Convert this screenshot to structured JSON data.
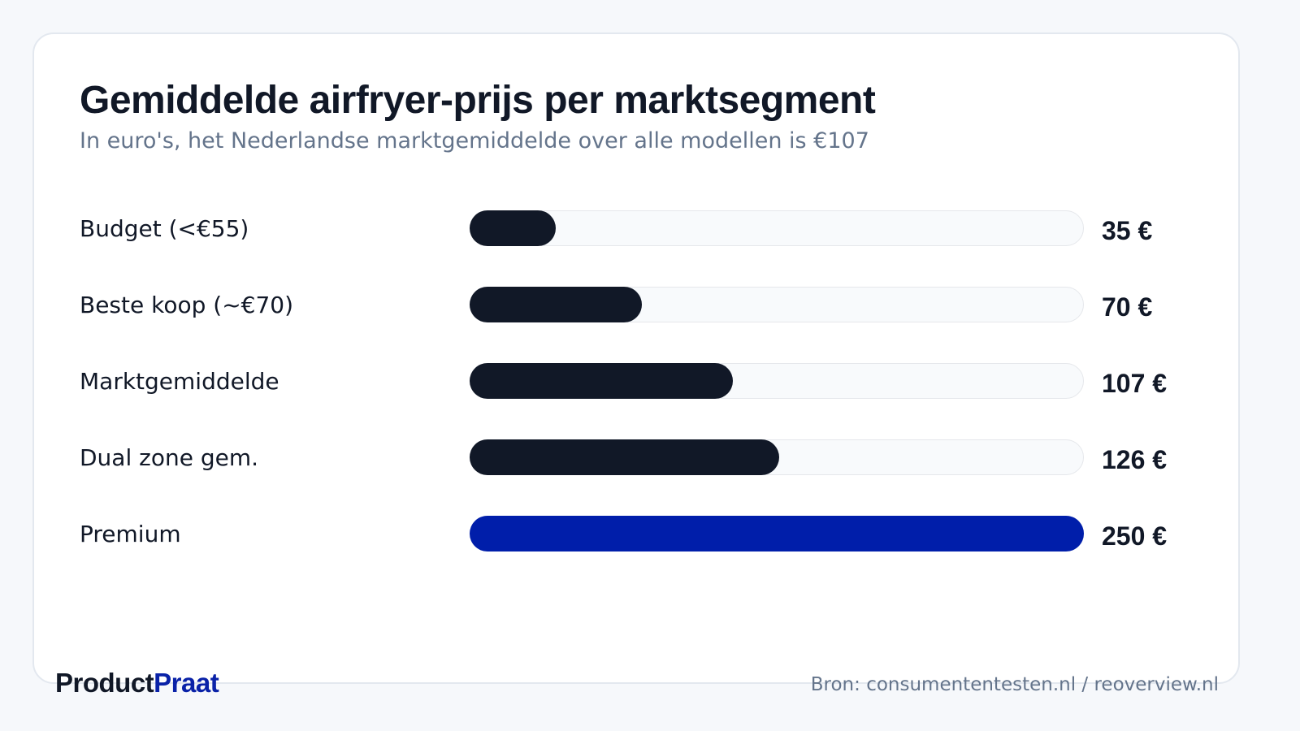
{
  "colors": {
    "background": "#f6f8fb",
    "bar_default": "#111827",
    "bar_highlight": "#001eaa",
    "track": "#f8fafc",
    "brand_primary": "#111827",
    "brand_accent": "#0a22a8"
  },
  "brand": {
    "part1": "Product",
    "part2": "Praat"
  },
  "source": "Bron: consumententesten.nl / reoverview.nl",
  "chart_data": {
    "type": "bar",
    "orientation": "horizontal",
    "title": "Gemiddelde airfryer-prijs per marktsegment",
    "subtitle": "In euro's, het Nederlandse marktgemiddelde over alle modellen is €107",
    "xlim": [
      0,
      250
    ],
    "grid": false,
    "categories": [
      "Budget (<€55)",
      "Beste koop (~€70)",
      "Marktgemiddelde",
      "Dual zone gem.",
      "Premium"
    ],
    "values": [
      35,
      70,
      107,
      126,
      250
    ],
    "value_labels": [
      "35 €",
      "70 €",
      "107 €",
      "126 €",
      "250 €"
    ],
    "highlight_index": 4
  }
}
